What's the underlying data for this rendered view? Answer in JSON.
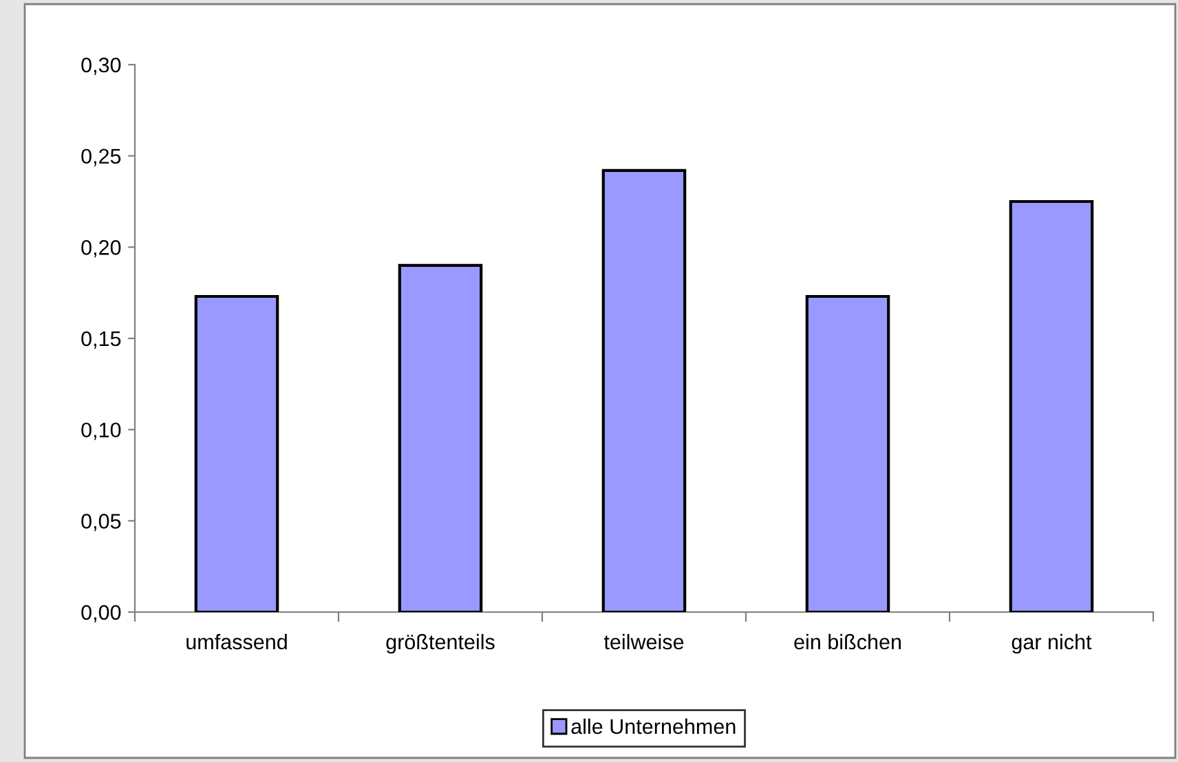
{
  "chart_data": {
    "type": "bar",
    "categories": [
      "umfassend",
      "größtenteils",
      "teilweise",
      "ein bißchen",
      "gar nicht"
    ],
    "series": [
      {
        "name": "alle Unternehmen",
        "color": "#9999ff",
        "values": [
          0.173,
          0.19,
          0.242,
          0.173,
          0.225
        ]
      }
    ],
    "ylim": [
      0,
      0.3
    ],
    "yticks": [
      {
        "value": 0,
        "label": "0,00"
      },
      {
        "value": 0.05,
        "label": "0,05"
      },
      {
        "value": 0.1,
        "label": "0,10"
      },
      {
        "value": 0.15,
        "label": "0,15"
      },
      {
        "value": 0.2,
        "label": "0,20"
      },
      {
        "value": 0.25,
        "label": "0,25"
      },
      {
        "value": 0.3,
        "label": "0,30"
      }
    ],
    "grid": false,
    "legend": "bottom"
  }
}
